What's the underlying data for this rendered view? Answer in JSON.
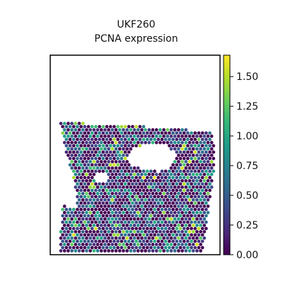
{
  "chart_data": {
    "type": "scatter",
    "title_line1": "UKF260",
    "title_line2": "PCNA expression",
    "xlabel": "",
    "ylabel": "",
    "axes_ticks_visible": false,
    "colormap": "viridis",
    "colorbar": {
      "vmin": 0.0,
      "vmax": 1.68,
      "ticks": [
        0.0,
        0.25,
        0.5,
        0.75,
        1.0,
        1.25,
        1.5
      ],
      "tick_labels": [
        "0.00",
        "0.25",
        "0.50",
        "0.75",
        "1.00",
        "1.25",
        "1.50"
      ],
      "position": "right"
    },
    "value_distribution": {
      "fraction_zero": 0.42,
      "fraction_low": 0.3,
      "fraction_mid": 0.2,
      "fraction_high": 0.08
    },
    "tissue_regions": {
      "main": [
        [
          12,
          95
        ],
        [
          60,
          97
        ],
        [
          100,
          98
        ],
        [
          135,
          101
        ],
        [
          175,
          104
        ],
        [
          218,
          107
        ],
        [
          230,
          110
        ],
        [
          232,
          140
        ],
        [
          230,
          180
        ],
        [
          226,
          205
        ],
        [
          222,
          240
        ],
        [
          218,
          260
        ],
        [
          214,
          280
        ],
        [
          210,
          305
        ],
        [
          210,
          330
        ],
        [
          200,
          333
        ],
        [
          150,
          332
        ],
        [
          100,
          330
        ],
        [
          65,
          328
        ],
        [
          52,
          325
        ],
        [
          48,
          300
        ],
        [
          45,
          260
        ],
        [
          40,
          220
        ],
        [
          32,
          170
        ],
        [
          22,
          140
        ],
        [
          18,
          115
        ]
      ],
      "left_strip": [
        [
          18,
          213
        ],
        [
          40,
          215
        ],
        [
          45,
          230
        ],
        [
          48,
          260
        ],
        [
          47,
          295
        ],
        [
          44,
          320
        ],
        [
          36,
          332
        ],
        [
          30,
          348
        ],
        [
          25,
          350
        ],
        [
          18,
          328
        ],
        [
          12,
          300
        ],
        [
          14,
          260
        ],
        [
          16,
          230
        ]
      ],
      "holes": [
        [
          [
            108,
            150
          ],
          [
            120,
            130
          ],
          [
            142,
            126
          ],
          [
            165,
            128
          ],
          [
            178,
            140
          ],
          [
            170,
            160
          ],
          [
            155,
            165
          ],
          [
            135,
            162
          ],
          [
            118,
            158
          ]
        ],
        [
          [
            66,
            165
          ],
          [
            80,
            168
          ],
          [
            82,
            180
          ],
          [
            72,
            182
          ],
          [
            64,
            175
          ]
        ]
      ]
    }
  },
  "colors": {
    "viridis_stops": [
      "#440154",
      "#482878",
      "#3e4989",
      "#31688e",
      "#26828e",
      "#1f9e89",
      "#35b779",
      "#6ece58",
      "#b5de2b",
      "#fde725"
    ],
    "axes_frame": "#000000"
  }
}
